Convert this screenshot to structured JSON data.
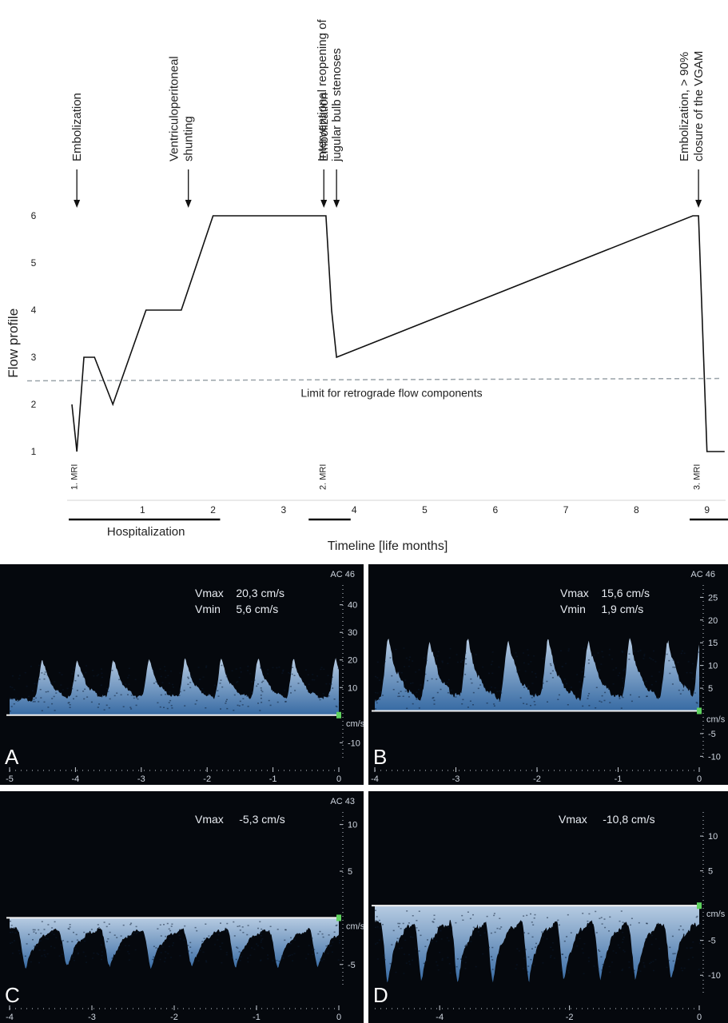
{
  "chart_data": [
    {
      "type": "line",
      "ylabel": "Flow profile",
      "xlabel": "Timeline [life months]",
      "xlim": [
        -0.05,
        9.3
      ],
      "ylim": [
        1,
        6
      ],
      "xticks": [
        1,
        2,
        3,
        4,
        5,
        6,
        7,
        8,
        9
      ],
      "yticks": [
        1,
        2,
        3,
        4,
        5,
        6
      ],
      "series": [
        {
          "x": [
            0.0,
            0.07,
            0.17,
            0.32,
            0.58,
            1.05,
            1.55,
            2.0,
            3.6,
            3.68,
            3.75,
            8.8,
            8.88,
            9.0,
            9.25
          ],
          "y": [
            2,
            1,
            3,
            3,
            2,
            4,
            4,
            6,
            6,
            4,
            3,
            6,
            6,
            1,
            1
          ]
        }
      ],
      "reference_line": {
        "y_start": 2.5,
        "y_end": 2.55,
        "label": "Limit for retrograde flow components",
        "style": "dashed"
      },
      "events": [
        {
          "x": 0.07,
          "label_lines": [
            "Embolization"
          ]
        },
        {
          "x": 1.65,
          "label_lines": [
            "Ventriculoperitoneal",
            "shunting"
          ]
        },
        {
          "x": 3.57,
          "label_lines": [
            "Embolization"
          ]
        },
        {
          "x": 3.75,
          "label_lines": [
            "Interventional reopening of",
            "jugular bulb stenoses"
          ]
        },
        {
          "x": 8.88,
          "label_lines": [
            "Embolization, > 90%",
            "closure of the VGAM"
          ]
        }
      ],
      "mri_marks": [
        {
          "x": 0.03,
          "label": "1. MRI"
        },
        {
          "x": 3.55,
          "label": "2. MRI"
        },
        {
          "x": 8.85,
          "label": "3. MRI"
        }
      ],
      "periods": [
        {
          "x_start": 0.0,
          "x_end": 2.1,
          "label": "Hospitalization"
        },
        {
          "x_start": 3.4,
          "x_end": 3.95,
          "label": ""
        },
        {
          "x_start": 8.8,
          "x_end": 9.3,
          "label": ""
        }
      ]
    },
    {
      "type": "line",
      "panel": "A",
      "annotations": [
        "Vmax    20,3 cm/s",
        "Vmin     5,6 cm/s"
      ],
      "corner_label": "AC 46",
      "unit_label": "cm/s",
      "xlim": [
        -5,
        0
      ],
      "ylim": [
        -16,
        46
      ],
      "xticks": [
        -5,
        -4,
        -3,
        -2,
        -1,
        0
      ],
      "yticks": [
        40,
        30,
        20,
        10,
        -10
      ],
      "baseline": 0,
      "peak_times": [
        -4.5,
        -3.97,
        -3.42,
        -2.88,
        -2.33,
        -1.78,
        -1.22,
        -0.68,
        -0.05
      ],
      "peak": 20.3,
      "trough": 5.6,
      "waveform_polarity": "positive"
    },
    {
      "type": "line",
      "panel": "B",
      "annotations": [
        "Vmax    15,6 cm/s",
        "Vmin     1,9 cm/s"
      ],
      "corner_label": "AC 46",
      "unit_label": "cm/s",
      "xlim": [
        -4,
        0
      ],
      "ylim": [
        -11,
        27
      ],
      "xticks": [
        -4,
        -3,
        -2,
        -1,
        0
      ],
      "yticks": [
        25,
        20,
        15,
        10,
        5,
        -5,
        -10
      ],
      "baseline": 0,
      "peak_times": [
        -3.83,
        -3.32,
        -2.85,
        -2.35,
        -1.86,
        -1.36,
        -0.85,
        -0.38,
        0.02
      ],
      "peak": 15.6,
      "trough": 1.9,
      "waveform_polarity": "positive"
    },
    {
      "type": "line",
      "panel": "C",
      "annotations": [
        "Vmax     -5,3 cm/s"
      ],
      "corner_label": "AC 43",
      "unit_label": "cm/s",
      "xlim": [
        -4,
        0
      ],
      "ylim": [
        -7.5,
        11
      ],
      "xticks": [
        -4,
        -3,
        -2,
        -1,
        0
      ],
      "yticks": [
        10,
        5,
        -5
      ],
      "baseline": 0,
      "peak_times": [
        -3.8,
        -3.3,
        -2.78,
        -2.28,
        -1.78,
        -1.25,
        -0.74,
        -0.25
      ],
      "peak": -5.3,
      "trough": -1.0,
      "waveform_polarity": "negative"
    },
    {
      "type": "line",
      "panel": "D",
      "annotations": [
        "Vmax     -10,8 cm/s"
      ],
      "unit_label": "cm/s",
      "xlim": [
        -5,
        0
      ],
      "ylim": [
        -12.5,
        13
      ],
      "xticks": [
        -4,
        -2,
        0
      ],
      "yticks": [
        10,
        5,
        -5,
        -10
      ],
      "baseline": 0,
      "peak_times": [
        -4.8,
        -4.28,
        -3.72,
        -3.18,
        -2.62,
        -2.08,
        -1.52,
        -0.98,
        -0.43
      ],
      "peak": -10.8,
      "trough": -2.0,
      "waveform_polarity": "negative"
    }
  ]
}
